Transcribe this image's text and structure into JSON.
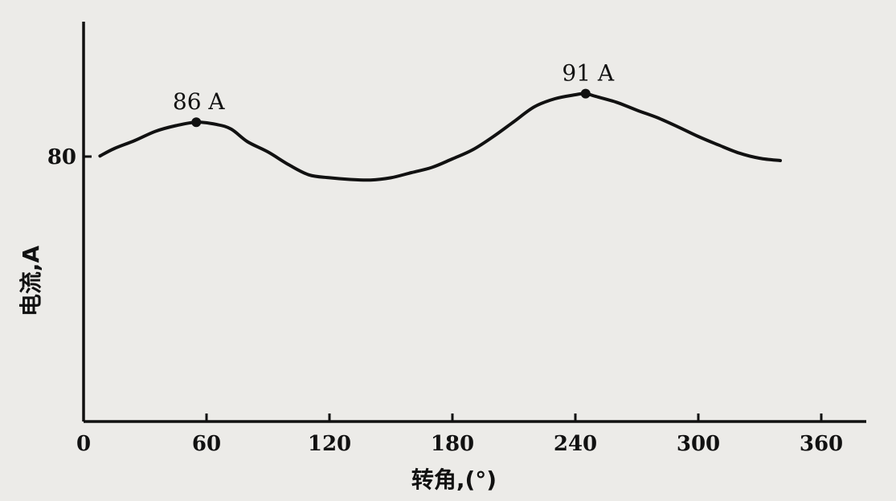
{
  "chart_data": {
    "type": "line",
    "title": "",
    "xlabel": "转角,(°)",
    "ylabel": "电流,A",
    "xlim": [
      0,
      360
    ],
    "x_ticks": [
      0,
      60,
      120,
      180,
      240,
      300,
      360
    ],
    "y_ticks": [
      80
    ],
    "y_tick_labels": [
      "80"
    ],
    "grid": false,
    "series": [
      {
        "x": [
          8,
          15,
          25,
          35,
          45,
          55,
          65,
          72,
          80,
          90,
          100,
          110,
          120,
          130,
          140,
          150,
          160,
          170,
          180,
          190,
          200,
          210,
          220,
          230,
          240,
          245,
          250,
          260,
          270,
          280,
          290,
          300,
          310,
          320,
          330,
          340
        ],
        "y": [
          80.1,
          81.4,
          82.8,
          84.4,
          85.4,
          86.0,
          85.6,
          84.8,
          82.6,
          80.8,
          78.6,
          76.8,
          76.3,
          76.0,
          75.9,
          76.3,
          77.2,
          78.1,
          79.6,
          81.2,
          83.5,
          86.1,
          88.7,
          90.1,
          90.8,
          91.0,
          90.5,
          89.5,
          88.1,
          86.8,
          85.2,
          83.5,
          82.0,
          80.6,
          79.7,
          79.3
        ]
      }
    ],
    "annotations": [
      {
        "x": 55,
        "y": 86,
        "label": "86 A"
      },
      {
        "x": 245,
        "y": 91,
        "label": "91 A"
      }
    ]
  }
}
